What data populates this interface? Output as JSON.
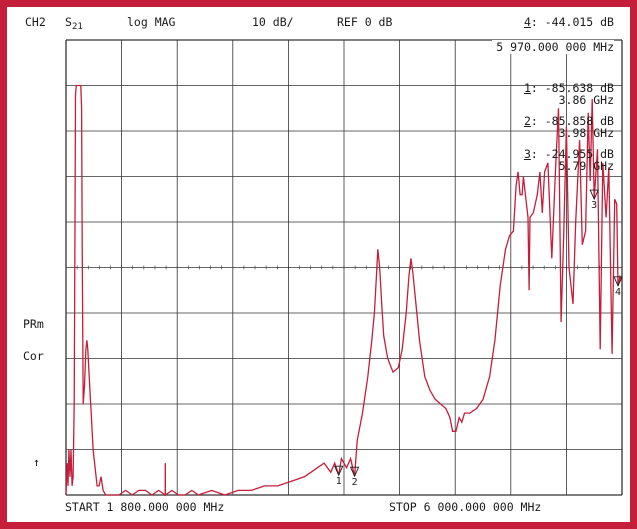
{
  "header": {
    "channel": "CH2",
    "param_main": "S",
    "param_sub": "21",
    "format": "log MAG",
    "scale": "10 dB/",
    "reference": "REF 0 dB"
  },
  "active_marker": {
    "label": "4",
    "value": "-44.015 dB",
    "frequency": "5 970.000 000 MHz"
  },
  "markers": [
    {
      "label": "1",
      "value": "-85.638 dB",
      "frequency": "3.86 GHz"
    },
    {
      "label": "2",
      "value": "-85.858 dB",
      "frequency": "3.98 GHz"
    },
    {
      "label": "3",
      "value": "-24.955 dB",
      "frequency": "5.79 GHz"
    }
  ],
  "side_labels": {
    "prm": "PRm",
    "cor": "Cor",
    "arrow": "↑"
  },
  "footer": {
    "start": "START 1 800.000 000 MHz",
    "stop": "STOP 6 000.000 000 MHz"
  },
  "colors": {
    "trace": "#c41e3a",
    "grid": "#333333",
    "frame": "#c41e3a"
  },
  "chart_data": {
    "type": "line",
    "xlabel": "",
    "ylabel": "",
    "x_unit": "MHz",
    "y_unit": "dB",
    "xlim": [
      1800,
      6000
    ],
    "ylim": [
      -90,
      10
    ],
    "grid": true,
    "x_divisions": 10,
    "y_divisions": 10,
    "series": [
      {
        "values": [
          [
            1800,
            -90
          ],
          [
            1808,
            -83
          ],
          [
            1815,
            -88
          ],
          [
            1822,
            -80
          ],
          [
            1830,
            -86
          ],
          [
            1838,
            -80
          ],
          [
            1846,
            -88
          ],
          [
            1854,
            -86
          ],
          [
            1862,
            -70
          ],
          [
            1868,
            -30
          ],
          [
            1872,
            -2
          ],
          [
            1878,
            0
          ],
          [
            1890,
            0
          ],
          [
            1905,
            0
          ],
          [
            1912,
            0
          ],
          [
            1918,
            -5
          ],
          [
            1922,
            -35
          ],
          [
            1930,
            -70
          ],
          [
            1940,
            -66
          ],
          [
            1950,
            -58
          ],
          [
            1958,
            -56
          ],
          [
            1965,
            -58
          ],
          [
            1975,
            -64
          ],
          [
            1990,
            -72
          ],
          [
            2005,
            -80
          ],
          [
            2020,
            -84
          ],
          [
            2035,
            -88
          ],
          [
            2050,
            -88
          ],
          [
            2065,
            -86
          ],
          [
            2080,
            -89
          ],
          [
            2100,
            -90
          ],
          [
            2150,
            -90
          ],
          [
            2200,
            -90
          ],
          [
            2250,
            -89
          ],
          [
            2300,
            -90
          ],
          [
            2350,
            -89
          ],
          [
            2400,
            -89
          ],
          [
            2450,
            -90
          ],
          [
            2500,
            -89
          ],
          [
            2549,
            -90
          ],
          [
            2550,
            -83
          ],
          [
            2551,
            -90
          ],
          [
            2600,
            -89
          ],
          [
            2650,
            -90
          ],
          [
            2700,
            -90
          ],
          [
            2750,
            -89
          ],
          [
            2800,
            -90
          ],
          [
            2900,
            -89
          ],
          [
            3000,
            -90
          ],
          [
            3100,
            -89
          ],
          [
            3200,
            -89
          ],
          [
            3300,
            -88
          ],
          [
            3400,
            -88
          ],
          [
            3500,
            -87
          ],
          [
            3600,
            -86
          ],
          [
            3650,
            -85
          ],
          [
            3700,
            -84
          ],
          [
            3750,
            -83
          ],
          [
            3800,
            -85
          ],
          [
            3830,
            -83
          ],
          [
            3860,
            -85.6
          ],
          [
            3880,
            -82
          ],
          [
            3920,
            -84
          ],
          [
            3950,
            -82
          ],
          [
            3980,
            -85.9
          ],
          [
            4000,
            -78
          ],
          [
            4040,
            -72
          ],
          [
            4080,
            -64
          ],
          [
            4110,
            -56
          ],
          [
            4130,
            -50
          ],
          [
            4145,
            -42
          ],
          [
            4155,
            -36
          ],
          [
            4170,
            -40
          ],
          [
            4185,
            -48
          ],
          [
            4200,
            -55
          ],
          [
            4230,
            -60
          ],
          [
            4270,
            -63
          ],
          [
            4310,
            -62
          ],
          [
            4340,
            -58
          ],
          [
            4370,
            -50
          ],
          [
            4390,
            -42
          ],
          [
            4405,
            -38
          ],
          [
            4420,
            -41
          ],
          [
            4440,
            -47
          ],
          [
            4470,
            -56
          ],
          [
            4510,
            -64
          ],
          [
            4550,
            -67
          ],
          [
            4590,
            -69
          ],
          [
            4630,
            -70
          ],
          [
            4670,
            -71
          ],
          [
            4700,
            -73
          ],
          [
            4720,
            -76
          ],
          [
            4745,
            -76
          ],
          [
            4770,
            -73
          ],
          [
            4790,
            -74
          ],
          [
            4810,
            -72
          ],
          [
            4850,
            -72
          ],
          [
            4900,
            -71
          ],
          [
            4950,
            -69
          ],
          [
            5000,
            -64
          ],
          [
            5040,
            -56
          ],
          [
            5080,
            -44
          ],
          [
            5120,
            -36
          ],
          [
            5150,
            -33
          ],
          [
            5180,
            -32
          ],
          [
            5200,
            -22
          ],
          [
            5215,
            -19
          ],
          [
            5230,
            -24
          ],
          [
            5245,
            -24
          ],
          [
            5255,
            -20
          ],
          [
            5270,
            -24
          ],
          [
            5290,
            -29
          ],
          [
            5298,
            -45
          ],
          [
            5305,
            -29
          ],
          [
            5330,
            -28
          ],
          [
            5360,
            -24
          ],
          [
            5380,
            -19
          ],
          [
            5398,
            -28
          ],
          [
            5415,
            -19
          ],
          [
            5440,
            -17
          ],
          [
            5470,
            -38
          ],
          [
            5500,
            -17
          ],
          [
            5520,
            -5
          ],
          [
            5540,
            -52
          ],
          [
            5560,
            -32
          ],
          [
            5580,
            -9
          ],
          [
            5600,
            -40
          ],
          [
            5630,
            -48
          ],
          [
            5650,
            -30
          ],
          [
            5680,
            -12
          ],
          [
            5700,
            -35
          ],
          [
            5725,
            -32
          ],
          [
            5745,
            -6
          ],
          [
            5760,
            -21
          ],
          [
            5775,
            -3
          ],
          [
            5790,
            -24.9
          ],
          [
            5815,
            -14
          ],
          [
            5835,
            -58
          ],
          [
            5855,
            -17
          ],
          [
            5880,
            -29
          ],
          [
            5900,
            -18
          ],
          [
            5925,
            -59
          ],
          [
            5945,
            -25
          ],
          [
            5960,
            -26
          ],
          [
            5970,
            -44
          ],
          [
            5985,
            -42
          ],
          [
            6000,
            -43
          ]
        ]
      }
    ]
  }
}
